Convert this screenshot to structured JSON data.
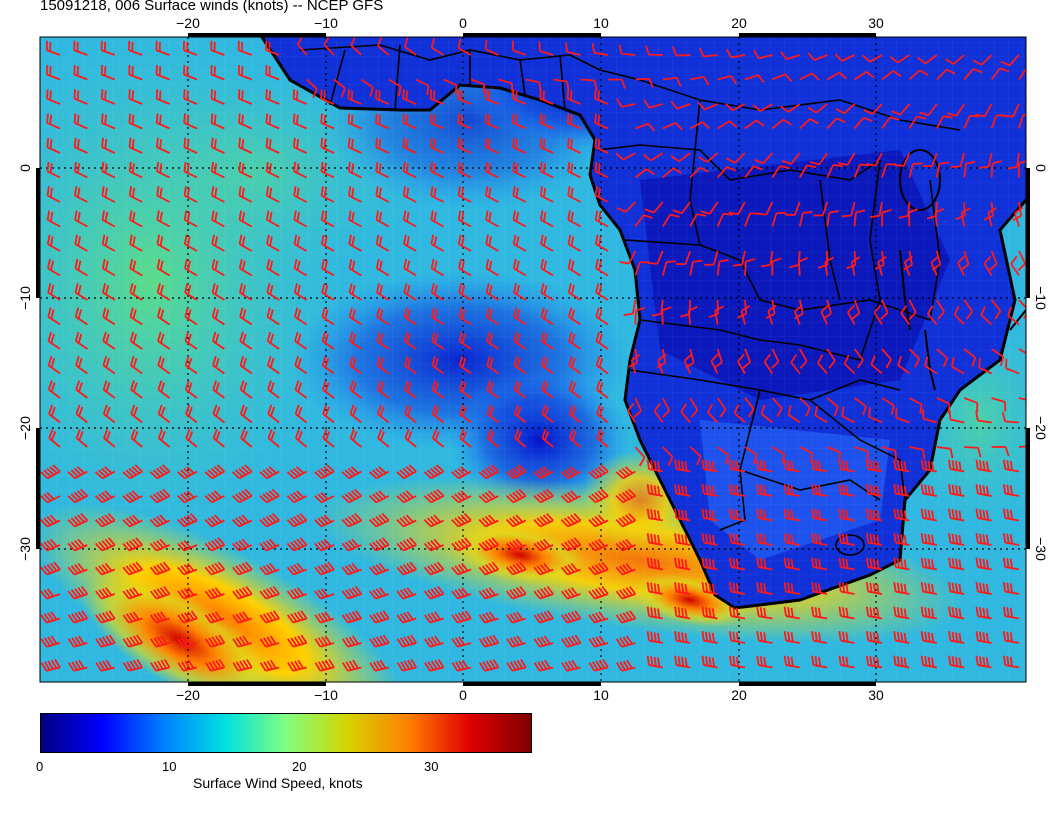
{
  "title": "15091218, 006 Surface winds (knots) -- NCEP GFS",
  "map": {
    "projection": "lat-lon",
    "lon_range": [
      -31,
      41
    ],
    "lat_range": [
      -40,
      10
    ],
    "lon_ticks": [
      "-20",
      "-10",
      "0",
      "10",
      "20",
      "30"
    ],
    "lat_ticks": [
      "0",
      "-10",
      "-20",
      "-30"
    ],
    "variable": "surface wind speed",
    "units": "knots",
    "wind_barb_color": "#ff1a1a",
    "coastline_color": "#000000"
  },
  "colorbar": {
    "label": "Surface Wind Speed, knots",
    "min": 0,
    "max": 38,
    "ticks": [
      "0",
      "10",
      "20",
      "30"
    ],
    "colors": [
      "#00007f",
      "#0000ff",
      "#0080ff",
      "#00e0e0",
      "#7fff7f",
      "#d4d400",
      "#ff8000",
      "#e00000",
      "#7f0000"
    ]
  }
}
